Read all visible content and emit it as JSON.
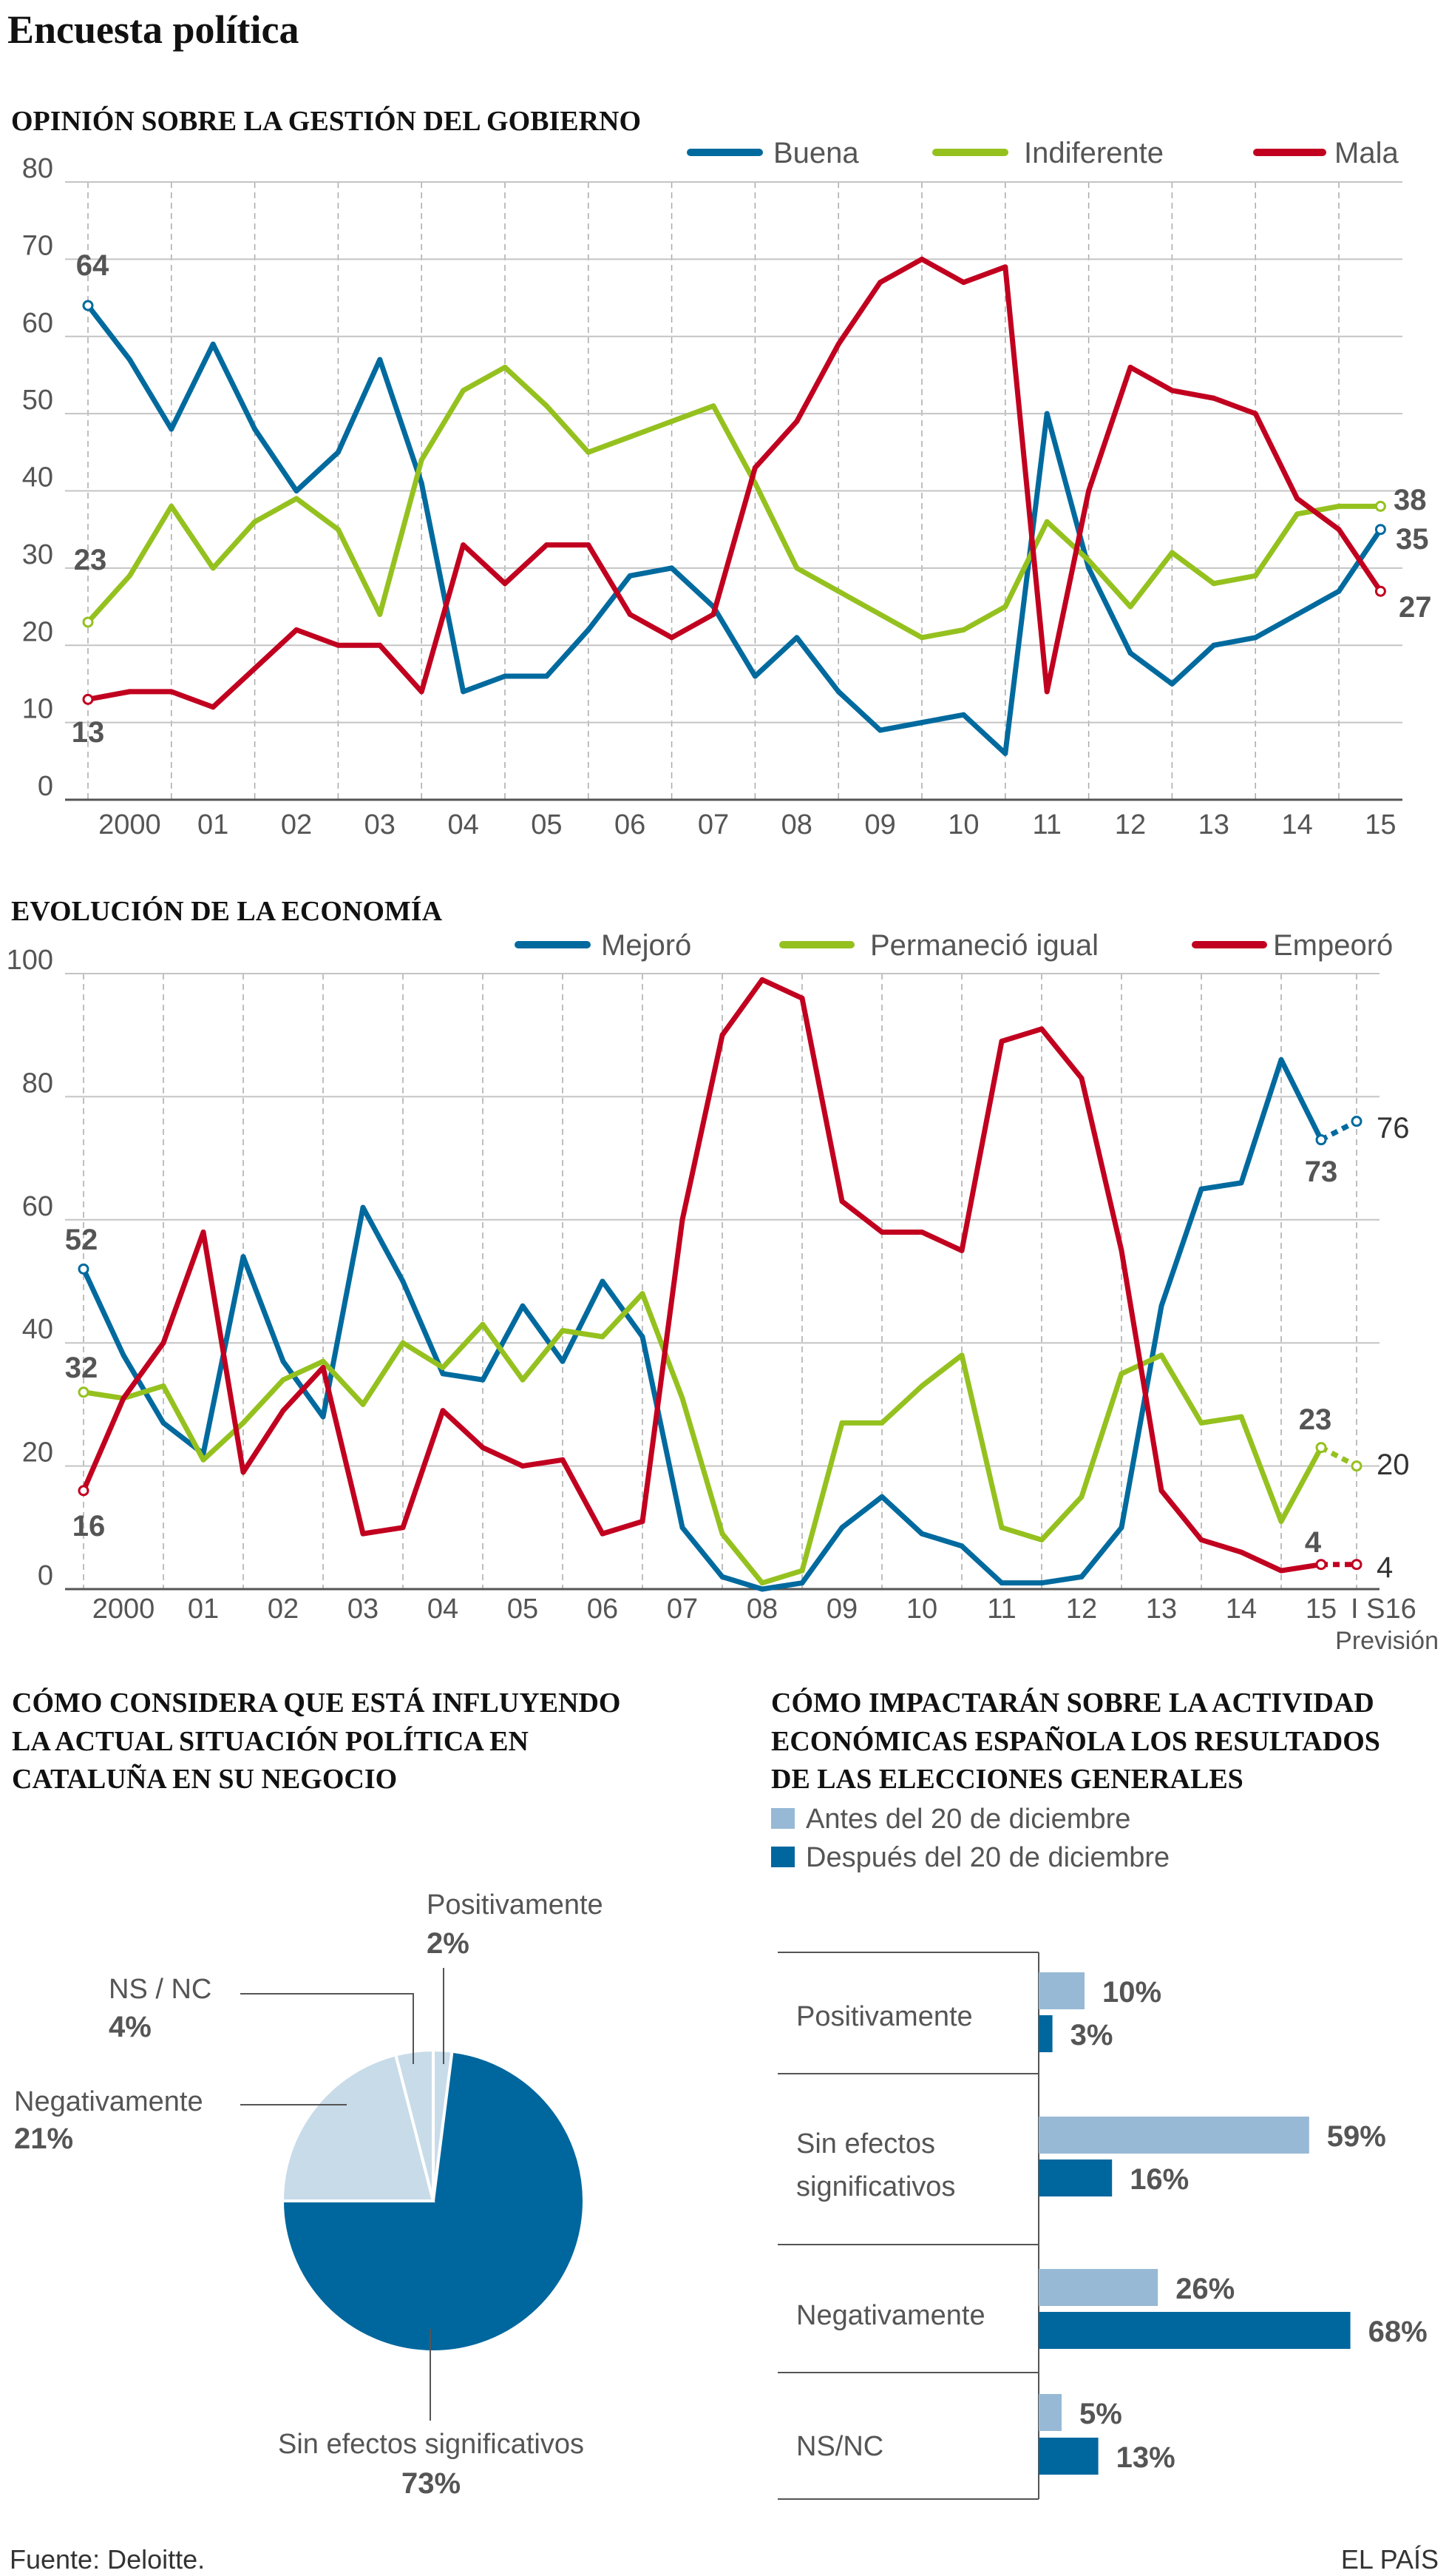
{
  "title": "Encuesta política",
  "chart_data": [
    {
      "type": "line",
      "title": "OPINIÓN SOBRE LA GESTIÓN DEL GOBIERNO",
      "ylim": [
        0,
        80
      ],
      "yticks": [
        0,
        10,
        20,
        30,
        40,
        50,
        60,
        70,
        80
      ],
      "xtick_labels": [
        "2000",
        "01",
        "02",
        "03",
        "04",
        "05",
        "06",
        "07",
        "08",
        "09",
        "10",
        "11",
        "12",
        "13",
        "14",
        "15"
      ],
      "grid": true,
      "legend": "top-right",
      "series": [
        {
          "name": "Buena",
          "color": "#006a9e",
          "values": [
            64,
            57,
            48,
            59,
            48,
            40,
            45,
            57,
            41,
            14,
            16,
            16,
            22,
            29,
            30,
            25,
            16,
            21,
            14,
            9,
            10,
            11,
            6,
            50,
            30,
            19,
            15,
            20,
            21,
            24,
            27,
            35
          ]
        },
        {
          "name": "Indiferente",
          "color": "#95c11f",
          "values": [
            23,
            29,
            38,
            30,
            36,
            39,
            35,
            24,
            44,
            53,
            56,
            51,
            45,
            47,
            49,
            51,
            41,
            30,
            27,
            24,
            21,
            22,
            25,
            36,
            31,
            25,
            32,
            28,
            29,
            37,
            38,
            38
          ]
        },
        {
          "name": "Mala",
          "color": "#c1001f",
          "values": [
            13,
            14,
            14,
            12,
            17,
            22,
            20,
            20,
            14,
            33,
            28,
            33,
            33,
            24,
            21,
            24,
            43,
            49,
            59,
            67,
            70,
            67,
            69,
            14,
            40,
            56,
            53,
            52,
            50,
            39,
            35,
            27
          ]
        }
      ]
    },
    {
      "type": "line",
      "title": "EVOLUCIÓN DE LA ECONOMÍA",
      "ylim": [
        0,
        100
      ],
      "yticks": [
        0,
        20,
        40,
        60,
        80,
        100
      ],
      "xtick_labels": [
        "2000",
        "01",
        "02",
        "03",
        "04",
        "05",
        "06",
        "07",
        "08",
        "09",
        "10",
        "11",
        "12",
        "13",
        "14",
        "15"
      ],
      "forecast_tick": "I S16",
      "forecast_note": "Previsión",
      "grid": true,
      "legend": "top-right",
      "series": [
        {
          "name": "Mejoró",
          "color": "#006a9e",
          "values": [
            52,
            38,
            27,
            22,
            54,
            37,
            28,
            62,
            50,
            35,
            34,
            46,
            37,
            50,
            41,
            10,
            2,
            0,
            1,
            10,
            15,
            9,
            7,
            1,
            1,
            2,
            10,
            46,
            65,
            66,
            86,
            73
          ],
          "forecast": 76
        },
        {
          "name": "Permaneció igual",
          "color": "#95c11f",
          "values": [
            32,
            31,
            33,
            21,
            27,
            34,
            37,
            30,
            40,
            36,
            43,
            34,
            42,
            41,
            48,
            31,
            9,
            1,
            3,
            27,
            27,
            33,
            38,
            10,
            8,
            15,
            35,
            38,
            27,
            28,
            11,
            23
          ],
          "forecast": 20
        },
        {
          "name": "Empeoró",
          "color": "#c1001f",
          "values": [
            16,
            31,
            40,
            58,
            19,
            29,
            36,
            9,
            10,
            29,
            23,
            20,
            21,
            9,
            11,
            60,
            90,
            99,
            96,
            63,
            58,
            58,
            55,
            89,
            91,
            83,
            55,
            16,
            8,
            6,
            3,
            4
          ],
          "forecast": 4
        }
      ]
    },
    {
      "type": "pie",
      "title_lines": [
        "CÓMO CONSIDERA QUE ESTÁ INFLUYENDO",
        "LA ACTUAL SITUACIÓN POLÍTICA EN",
        "CATALUÑA EN SU NEGOCIO"
      ],
      "slices": [
        {
          "label": "Positivamente",
          "value": 2,
          "color": "#c8dbe9"
        },
        {
          "label": "Sin efectos significativos",
          "value": 73,
          "color": "#00679e"
        },
        {
          "label": "Negativamente",
          "value": 21,
          "color": "#c8dbe9"
        },
        {
          "label": "NS / NC",
          "value": 4,
          "color": "#c8dbe9"
        }
      ]
    },
    {
      "type": "bar",
      "orientation": "horizontal",
      "title_lines": [
        "CÓMO IMPACTARÁN SOBRE LA ACTIVIDAD",
        "ECONÓMICAS ESPAÑOLA LOS RESULTADOS",
        "DE LAS ELECCIONES GENERALES"
      ],
      "categories": [
        [
          "Positivamente"
        ],
        [
          "Sin efectos",
          "significativos"
        ],
        [
          "Negativamente"
        ],
        [
          "NS/NC"
        ]
      ],
      "series": [
        {
          "name": "Antes del 20 de diciembre",
          "color": "#97b9d5",
          "values": [
            10,
            59,
            26,
            5
          ]
        },
        {
          "name": "Después del 20 de diciembre",
          "color": "#00679e",
          "values": [
            3,
            16,
            68,
            13
          ]
        }
      ]
    }
  ],
  "footer": {
    "source": "Fuente: Deloitte.",
    "brand": "EL PAÍS"
  }
}
